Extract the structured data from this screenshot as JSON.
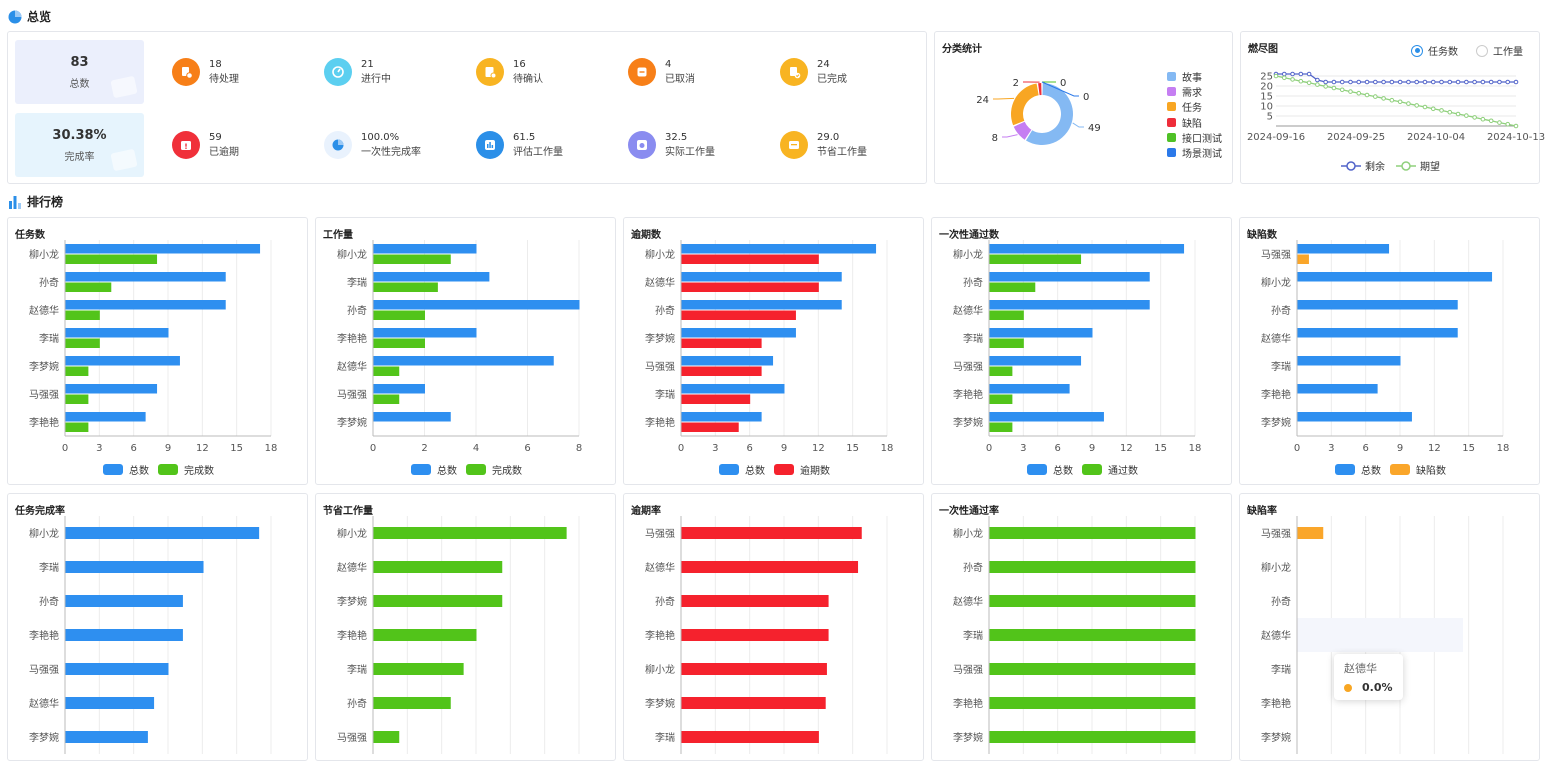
{
  "overview": {
    "title": "总览",
    "total": {
      "value": "83",
      "label": "总数"
    },
    "rate": {
      "value": "30.38%",
      "label": "完成率"
    },
    "stats": [
      {
        "value": "18",
        "label": "待处理",
        "color": "#f77f18",
        "icon": "pending-icon"
      },
      {
        "value": "21",
        "label": "进行中",
        "color": "#5ccff0",
        "icon": "in-progress-icon"
      },
      {
        "value": "16",
        "label": "待确认",
        "color": "#f8b422",
        "icon": "to-confirm-icon"
      },
      {
        "value": "4",
        "label": "已取消",
        "color": "#f77f18",
        "icon": "cancelled-icon"
      },
      {
        "value": "24",
        "label": "已完成",
        "color": "#f8b422",
        "icon": "completed-icon"
      },
      {
        "value": "59",
        "label": "已逾期",
        "color": "#f0303a",
        "icon": "overdue-icon"
      },
      {
        "value": "100.0%",
        "label": "一次性完成率",
        "color": "#e9f2fd",
        "icon": "pie-icon"
      },
      {
        "value": "61.5",
        "label": "评估工作量",
        "color": "#2b8fe8",
        "icon": "estimate-icon"
      },
      {
        "value": "32.5",
        "label": "实际工作量",
        "color": "#8a8cf0",
        "icon": "actual-icon"
      },
      {
        "value": "29.0",
        "label": "节省工作量",
        "color": "#f8b422",
        "icon": "saved-icon"
      }
    ]
  },
  "category": {
    "title": "分类统计",
    "slices": [
      {
        "name": "故事",
        "value": 49,
        "color": "#84b9f3"
      },
      {
        "name": "需求",
        "value": 8,
        "color": "#c57ef2"
      },
      {
        "name": "任务",
        "value": 24,
        "color": "#f8a623"
      },
      {
        "name": "缺陷",
        "value": 2,
        "color": "#ee2d3a"
      },
      {
        "name": "接口测试",
        "value": 0,
        "color": "#4fc126"
      },
      {
        "name": "场景测试",
        "value": 0,
        "color": "#2b79e9"
      }
    ]
  },
  "burndown": {
    "title": "燃尽图",
    "radio_task": "任务数",
    "radio_work": "工作量",
    "legend_remain": "剩余",
    "legend_expect": "期望",
    "remain_color": "#5163c9",
    "expect_color": "#8fd07c",
    "chart_data": {
      "type": "line",
      "x_labels": [
        "2024-09-16",
        "2024-09-25",
        "2024-10-04",
        "2024-10-13"
      ],
      "yticks": [
        5,
        10,
        15,
        20,
        25
      ],
      "ylim": [
        0,
        27
      ],
      "series": [
        {
          "name": "剩余",
          "values": [
            26,
            26,
            26,
            26,
            26,
            23,
            22,
            22,
            22,
            22,
            22,
            22,
            22,
            22,
            22,
            22,
            22,
            22,
            22,
            22,
            22,
            22,
            22,
            22,
            22,
            22,
            22,
            22,
            22,
            22
          ]
        },
        {
          "name": "期望",
          "values": [
            25,
            24.1,
            23.3,
            22.4,
            21.6,
            20.7,
            19.8,
            19.0,
            18.1,
            17.2,
            16.4,
            15.5,
            14.7,
            13.8,
            12.9,
            12.1,
            11.2,
            10.3,
            9.5,
            8.6,
            7.8,
            6.9,
            6.0,
            5.2,
            4.3,
            3.4,
            2.6,
            1.7,
            0.9,
            0
          ]
        }
      ]
    }
  },
  "ranking": {
    "title": "排行榜",
    "tooltip": {
      "name": "赵德华",
      "value": "0.0%",
      "color": "#f8a623"
    }
  },
  "chart_data": [
    {
      "type": "bar",
      "title": "任务数",
      "categories": [
        "柳小龙",
        "孙奇",
        "赵德华",
        "李瑞",
        "李梦婉",
        "马强强",
        "李艳艳"
      ],
      "xticks": [
        0,
        3,
        6,
        9,
        12,
        15,
        18
      ],
      "xlim": [
        0,
        18
      ],
      "series": [
        {
          "name": "总数",
          "color": "#2e8ff0",
          "values": [
            17,
            14,
            14,
            9,
            10,
            8,
            7
          ]
        },
        {
          "name": "完成数",
          "color": "#52c41a",
          "values": [
            8,
            4,
            3,
            3,
            2,
            2,
            2
          ]
        }
      ]
    },
    {
      "type": "bar",
      "title": "工作量",
      "categories": [
        "柳小龙",
        "李瑞",
        "孙奇",
        "李艳艳",
        "赵德华",
        "马强强",
        "李梦婉"
      ],
      "xticks": [
        0,
        2,
        4,
        6,
        8
      ],
      "xlim": [
        0,
        8
      ],
      "series": [
        {
          "name": "总数",
          "color": "#2e8ff0",
          "values": [
            4,
            4.5,
            8,
            4,
            7,
            2,
            3
          ]
        },
        {
          "name": "完成数",
          "color": "#52c41a",
          "values": [
            3,
            2.5,
            2,
            2,
            1,
            1,
            0
          ]
        }
      ]
    },
    {
      "type": "bar",
      "title": "逾期数",
      "categories": [
        "柳小龙",
        "赵德华",
        "孙奇",
        "李梦婉",
        "马强强",
        "李瑞",
        "李艳艳"
      ],
      "xticks": [
        0,
        3,
        6,
        9,
        12,
        15,
        18
      ],
      "xlim": [
        0,
        18
      ],
      "series": [
        {
          "name": "总数",
          "color": "#2e8ff0",
          "values": [
            17,
            14,
            14,
            10,
            8,
            9,
            7
          ]
        },
        {
          "name": "逾期数",
          "color": "#f5222d",
          "values": [
            12,
            12,
            10,
            7,
            7,
            6,
            5
          ]
        }
      ]
    },
    {
      "type": "bar",
      "title": "一次性通过数",
      "categories": [
        "柳小龙",
        "孙奇",
        "赵德华",
        "李瑞",
        "马强强",
        "李艳艳",
        "李梦婉"
      ],
      "xticks": [
        0,
        3,
        6,
        9,
        12,
        15,
        18
      ],
      "xlim": [
        0,
        18
      ],
      "series": [
        {
          "name": "总数",
          "color": "#2e8ff0",
          "values": [
            17,
            14,
            14,
            9,
            8,
            7,
            10
          ]
        },
        {
          "name": "通过数",
          "color": "#52c41a",
          "values": [
            8,
            4,
            3,
            3,
            2,
            2,
            2
          ]
        }
      ]
    },
    {
      "type": "bar",
      "title": "缺陷数",
      "categories": [
        "马强强",
        "柳小龙",
        "孙奇",
        "赵德华",
        "李瑞",
        "李艳艳",
        "李梦婉"
      ],
      "xticks": [
        0,
        3,
        6,
        9,
        12,
        15,
        18
      ],
      "xlim": [
        0,
        18
      ],
      "series": [
        {
          "name": "总数",
          "color": "#2e8ff0",
          "values": [
            8,
            17,
            14,
            14,
            9,
            7,
            10
          ]
        },
        {
          "name": "缺陷数",
          "color": "#faa62a",
          "values": [
            1,
            0,
            0,
            0,
            0,
            0,
            0
          ]
        }
      ]
    },
    {
      "type": "bar",
      "title": "任务完成率",
      "categories": [
        "柳小龙",
        "李瑞",
        "孙奇",
        "李艳艳",
        "马强强",
        "赵德华",
        "李梦婉"
      ],
      "xlim": [
        0,
        1
      ],
      "series": [
        {
          "color": "#2e8ff0",
          "values": [
            0.94,
            0.67,
            0.57,
            0.57,
            0.5,
            0.43,
            0.4
          ]
        }
      ]
    },
    {
      "type": "bar",
      "title": "节省工作量",
      "categories": [
        "柳小龙",
        "赵德华",
        "李梦婉",
        "李艳艳",
        "李瑞",
        "孙奇",
        "马强强"
      ],
      "xlim": [
        0,
        8
      ],
      "series": [
        {
          "color": "#52c41a",
          "values": [
            7.5,
            5,
            5,
            4,
            3.5,
            3,
            1
          ]
        }
      ]
    },
    {
      "type": "bar",
      "title": "逾期率",
      "categories": [
        "马强强",
        "赵德华",
        "孙奇",
        "李艳艳",
        "柳小龙",
        "李梦婉",
        "李瑞"
      ],
      "xlim": [
        0,
        1
      ],
      "series": [
        {
          "color": "#f5222d",
          "values": [
            0.875,
            0.857,
            0.714,
            0.714,
            0.706,
            0.7,
            0.667
          ]
        }
      ]
    },
    {
      "type": "bar",
      "title": "一次性通过率",
      "categories": [
        "柳小龙",
        "孙奇",
        "赵德华",
        "李瑞",
        "马强强",
        "李艳艳",
        "李梦婉"
      ],
      "xlim": [
        0,
        1
      ],
      "series": [
        {
          "color": "#52c41a",
          "values": [
            1,
            1,
            1,
            1,
            1,
            1,
            1
          ]
        }
      ]
    },
    {
      "type": "bar",
      "title": "缺陷率",
      "categories": [
        "马强强",
        "柳小龙",
        "孙奇",
        "赵德华",
        "李瑞",
        "李艳艳",
        "李梦婉"
      ],
      "xlim": [
        0,
        1
      ],
      "highlight_index": 3,
      "series": [
        {
          "color": "#faa62a",
          "values": [
            0.125,
            0,
            0,
            0,
            0,
            0,
            0
          ]
        }
      ]
    }
  ]
}
